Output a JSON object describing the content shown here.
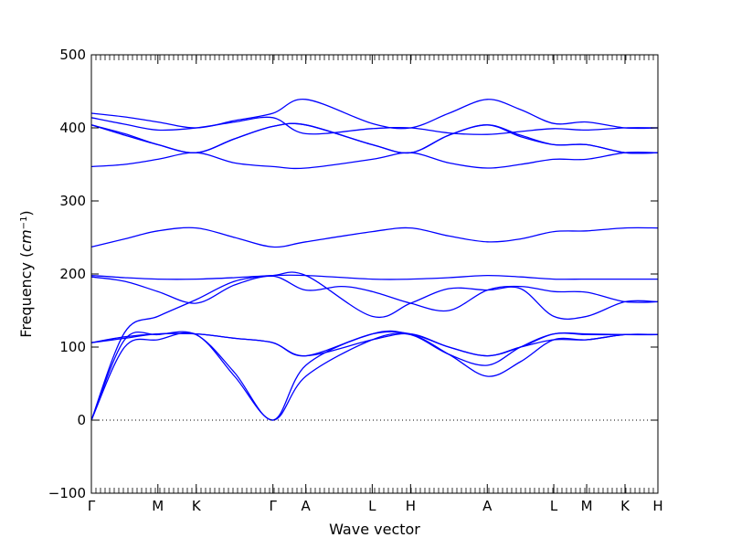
{
  "chart_data": {
    "type": "line",
    "title": "",
    "xlabel": "Wave vector",
    "ylabel": "Frequency (cm⁻¹)",
    "ylabel_parts": {
      "prefix": "Frequency (",
      "unit": "cm",
      "exp": "−1",
      "suffix": ")"
    },
    "ylim": [
      -100,
      500
    ],
    "yticks": [
      -100,
      0,
      100,
      200,
      300,
      400,
      500
    ],
    "ytick_labels": [
      "−100",
      "0",
      "100",
      "200",
      "300",
      "400",
      "500"
    ],
    "zero_line": true,
    "grid": false,
    "line_color": "#0000ff",
    "path_points": [
      {
        "label": "Γ",
        "position": 0.0
      },
      {
        "label": "M",
        "position": 0.718
      },
      {
        "label": "K",
        "position": 1.132
      },
      {
        "label": "Γ",
        "position": 1.96
      },
      {
        "label": "A",
        "position": 2.315
      },
      {
        "label": "L",
        "position": 3.032
      },
      {
        "label": "H",
        "position": 3.446
      },
      {
        "label": "A",
        "position": 4.274
      },
      {
        "label": "L",
        "position": 4.992
      },
      {
        "label": "M",
        "position": 5.347
      },
      {
        "label": "K",
        "position": 5.761
      },
      {
        "label": "H",
        "position": 6.116
      }
    ],
    "series": [
      {
        "values": [
          [
            0.0,
            0
          ],
          [
            0.359,
            100
          ],
          [
            0.718,
            110
          ],
          [
            1.132,
            117
          ],
          [
            1.546,
            60
          ],
          [
            1.96,
            0
          ],
          [
            2.315,
            60
          ],
          [
            3.032,
            110
          ],
          [
            3.446,
            117
          ],
          [
            3.86,
            90
          ],
          [
            4.274,
            60
          ],
          [
            4.633,
            80
          ],
          [
            4.992,
            110
          ],
          [
            5.347,
            110
          ],
          [
            5.761,
            117
          ],
          [
            6.116,
            117
          ]
        ]
      },
      {
        "values": [
          [
            0.0,
            0
          ],
          [
            0.359,
            110
          ],
          [
            0.718,
            117
          ],
          [
            1.132,
            117
          ],
          [
            1.546,
            65
          ],
          [
            1.96,
            0
          ],
          [
            2.315,
            75
          ],
          [
            3.032,
            118
          ],
          [
            3.446,
            117
          ],
          [
            3.86,
            90
          ],
          [
            4.274,
            75
          ],
          [
            4.633,
            100
          ],
          [
            4.992,
            118
          ],
          [
            5.347,
            117
          ],
          [
            5.761,
            117
          ],
          [
            6.116,
            117
          ]
        ]
      },
      {
        "values": [
          [
            0.0,
            0
          ],
          [
            0.359,
            120
          ],
          [
            0.718,
            142
          ],
          [
            1.132,
            165
          ],
          [
            1.546,
            190
          ],
          [
            1.96,
            198
          ],
          [
            2.315,
            198
          ],
          [
            3.032,
            142
          ],
          [
            3.446,
            160
          ],
          [
            3.86,
            180
          ],
          [
            4.274,
            178
          ],
          [
            4.633,
            180
          ],
          [
            4.992,
            142
          ],
          [
            5.347,
            142
          ],
          [
            5.761,
            162
          ],
          [
            6.116,
            162
          ]
        ]
      },
      {
        "values": [
          [
            0.0,
            106
          ],
          [
            0.359,
            114
          ],
          [
            0.718,
            118
          ],
          [
            1.132,
            118
          ],
          [
            1.546,
            112
          ],
          [
            1.96,
            106
          ],
          [
            2.315,
            88
          ],
          [
            3.032,
            118
          ],
          [
            3.446,
            118
          ],
          [
            3.86,
            100
          ],
          [
            4.274,
            88
          ],
          [
            4.633,
            100
          ],
          [
            4.992,
            118
          ],
          [
            5.347,
            118
          ],
          [
            5.761,
            117
          ],
          [
            6.116,
            117
          ]
        ]
      },
      {
        "values": [
          [
            0.0,
            106
          ],
          [
            0.359,
            112
          ],
          [
            0.718,
            118
          ],
          [
            1.132,
            118
          ],
          [
            1.546,
            112
          ],
          [
            1.96,
            106
          ],
          [
            2.315,
            88
          ],
          [
            3.032,
            110
          ],
          [
            3.446,
            118
          ],
          [
            3.86,
            100
          ],
          [
            4.274,
            88
          ],
          [
            4.633,
            100
          ],
          [
            4.992,
            110
          ],
          [
            5.347,
            110
          ],
          [
            5.761,
            117
          ],
          [
            6.116,
            117
          ]
        ]
      },
      {
        "values": [
          [
            0.0,
            196
          ],
          [
            0.359,
            190
          ],
          [
            0.718,
            176
          ],
          [
            1.132,
            160
          ],
          [
            1.546,
            185
          ],
          [
            1.96,
            197
          ],
          [
            2.315,
            178
          ],
          [
            2.7,
            183
          ],
          [
            3.032,
            176
          ],
          [
            3.446,
            160
          ],
          [
            3.86,
            150
          ],
          [
            4.274,
            178
          ],
          [
            4.633,
            183
          ],
          [
            4.992,
            176
          ],
          [
            5.347,
            175
          ],
          [
            5.761,
            162
          ],
          [
            6.116,
            162
          ]
        ]
      },
      {
        "values": [
          [
            0.0,
            198
          ],
          [
            0.359,
            195
          ],
          [
            0.718,
            193
          ],
          [
            1.132,
            193
          ],
          [
            1.546,
            195
          ],
          [
            1.96,
            198
          ],
          [
            2.315,
            198
          ],
          [
            3.032,
            193
          ],
          [
            3.446,
            193
          ],
          [
            3.86,
            195
          ],
          [
            4.274,
            198
          ],
          [
            4.633,
            196
          ],
          [
            4.992,
            193
          ],
          [
            5.347,
            193
          ],
          [
            5.761,
            193
          ],
          [
            6.116,
            193
          ]
        ]
      },
      {
        "values": [
          [
            0.0,
            237
          ],
          [
            0.359,
            248
          ],
          [
            0.718,
            259
          ],
          [
            1.132,
            263
          ],
          [
            1.546,
            250
          ],
          [
            1.96,
            237
          ],
          [
            2.315,
            244
          ],
          [
            3.032,
            258
          ],
          [
            3.446,
            263
          ],
          [
            3.86,
            252
          ],
          [
            4.274,
            244
          ],
          [
            4.633,
            248
          ],
          [
            4.992,
            258
          ],
          [
            5.347,
            259
          ],
          [
            5.761,
            263
          ],
          [
            6.116,
            263
          ]
        ]
      },
      {
        "values": [
          [
            0.0,
            347
          ],
          [
            0.359,
            350
          ],
          [
            0.718,
            357
          ],
          [
            1.132,
            366
          ],
          [
            1.546,
            352
          ],
          [
            1.96,
            347
          ],
          [
            2.315,
            345
          ],
          [
            3.032,
            357
          ],
          [
            3.446,
            366
          ],
          [
            3.86,
            352
          ],
          [
            4.274,
            345
          ],
          [
            4.633,
            350
          ],
          [
            4.992,
            357
          ],
          [
            5.347,
            357
          ],
          [
            5.761,
            366
          ],
          [
            6.116,
            366
          ]
        ]
      },
      {
        "values": [
          [
            0.0,
            404
          ],
          [
            0.359,
            392
          ],
          [
            0.718,
            377
          ],
          [
            1.132,
            366
          ],
          [
            1.546,
            385
          ],
          [
            1.96,
            402
          ],
          [
            2.315,
            404
          ],
          [
            3.032,
            377
          ],
          [
            3.446,
            366
          ],
          [
            3.86,
            390
          ],
          [
            4.274,
            404
          ],
          [
            4.633,
            390
          ],
          [
            4.992,
            377
          ],
          [
            5.347,
            377
          ],
          [
            5.761,
            366
          ],
          [
            6.116,
            366
          ]
        ]
      },
      {
        "values": [
          [
            0.0,
            404
          ],
          [
            0.359,
            390
          ],
          [
            0.718,
            377
          ],
          [
            1.132,
            366
          ],
          [
            1.546,
            385
          ],
          [
            1.96,
            402
          ],
          [
            2.315,
            404
          ],
          [
            3.032,
            377
          ],
          [
            3.446,
            366
          ],
          [
            3.86,
            390
          ],
          [
            4.274,
            404
          ],
          [
            4.633,
            388
          ],
          [
            4.992,
            377
          ],
          [
            5.347,
            377
          ],
          [
            5.761,
            366
          ],
          [
            6.116,
            366
          ]
        ]
      },
      {
        "values": [
          [
            0.0,
            414
          ],
          [
            0.359,
            405
          ],
          [
            0.718,
            397
          ],
          [
            1.132,
            400
          ],
          [
            1.546,
            408
          ],
          [
            1.96,
            414
          ],
          [
            2.315,
            392
          ],
          [
            3.032,
            399
          ],
          [
            3.446,
            400
          ],
          [
            3.86,
            393
          ],
          [
            4.274,
            391
          ],
          [
            4.633,
            395
          ],
          [
            4.992,
            399
          ],
          [
            5.347,
            397
          ],
          [
            5.761,
            400
          ],
          [
            6.116,
            400
          ]
        ]
      },
      {
        "values": [
          [
            0.0,
            420
          ],
          [
            0.359,
            415
          ],
          [
            0.718,
            408
          ],
          [
            1.132,
            400
          ],
          [
            1.546,
            410
          ],
          [
            1.96,
            420
          ],
          [
            2.315,
            439
          ],
          [
            3.032,
            406
          ],
          [
            3.446,
            400
          ],
          [
            3.86,
            420
          ],
          [
            4.274,
            439
          ],
          [
            4.633,
            425
          ],
          [
            4.992,
            406
          ],
          [
            5.347,
            408
          ],
          [
            5.761,
            400
          ],
          [
            6.116,
            400
          ]
        ]
      }
    ]
  }
}
